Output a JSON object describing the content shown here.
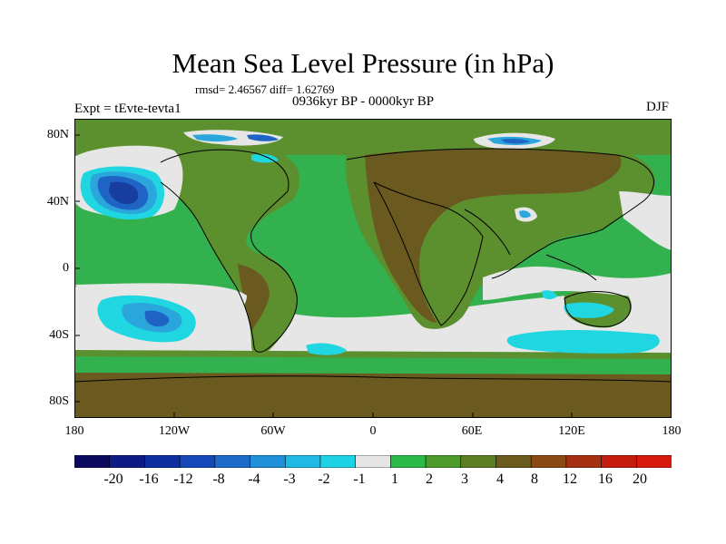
{
  "header": {
    "title": "Mean Sea Level Pressure (in hPa)",
    "stats": "rmsd= 2.46567 diff= 1.62769",
    "experiment": "Expt = tEvte-tevta1",
    "period": "0936kyr BP - 0000kyr BP",
    "season": "DJF"
  },
  "axes": {
    "lat_labels": [
      "80N",
      "40N",
      "0",
      "40S",
      "80S"
    ],
    "lon_labels": [
      "180",
      "120W",
      "60W",
      "0",
      "60E",
      "120E",
      "180"
    ]
  },
  "colors": {
    "land_green": "#5c8f2e",
    "ocean_green": "#33b14f",
    "brown": "#6b5a1f",
    "light_gray": "#e6e6e6",
    "cyan": "#20d6e0",
    "light_blue": "#2aa6dc",
    "blue": "#1f64c5",
    "dark_blue": "#173e9f"
  },
  "colorbar": {
    "labels": [
      "-20",
      "-16",
      "-12",
      "-8",
      "-4",
      "-3",
      "-2",
      "-1",
      "1",
      "2",
      "3",
      "4",
      "8",
      "12",
      "16",
      "20"
    ],
    "colors": [
      "#0b0a5e",
      "#0d1c85",
      "#0f2fa0",
      "#1547b8",
      "#1e6ac8",
      "#2090d8",
      "#20b8e4",
      "#1ed2e6",
      "#e6e6e6",
      "#2db84a",
      "#4f9a2d",
      "#5c7d24",
      "#6a5b1c",
      "#8a4a16",
      "#a53012",
      "#c41c0f",
      "#d81a0e"
    ]
  }
}
